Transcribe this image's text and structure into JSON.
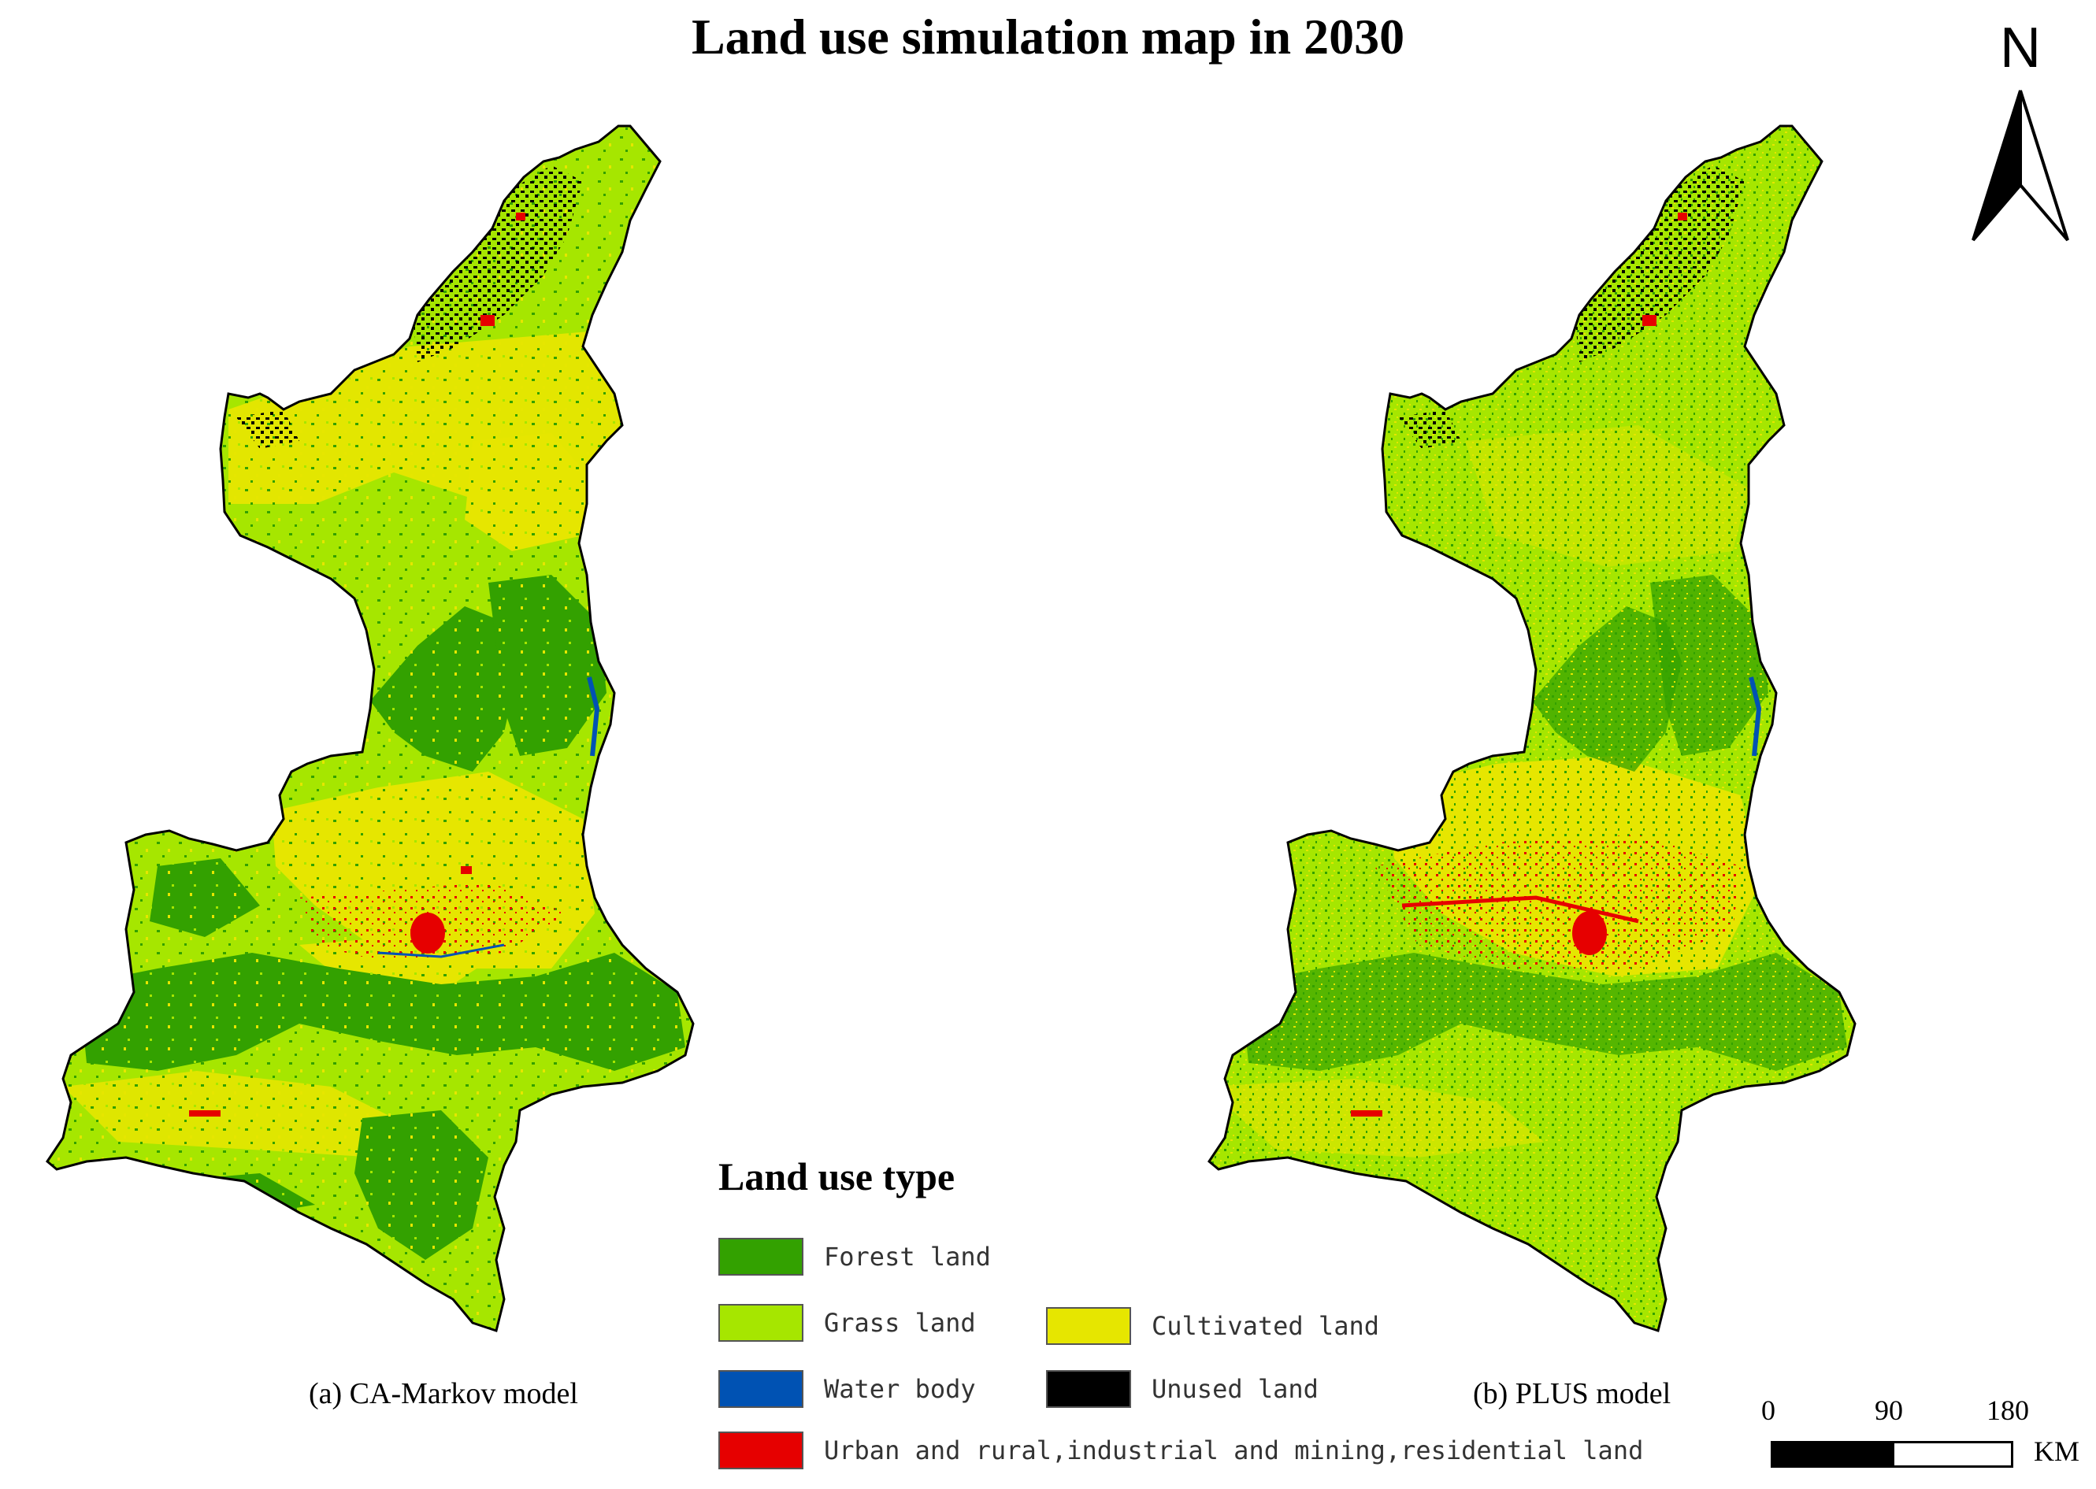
{
  "title": "Land use simulation map in 2030",
  "maps": [
    {
      "caption": "(a) CA-Markov model"
    },
    {
      "caption": "(b) PLUS model"
    }
  ],
  "legend": {
    "title": "Land use type",
    "items": [
      {
        "label": "Forest land",
        "color": "#33a100"
      },
      {
        "label": "Grass land",
        "color": "#a6e600"
      },
      {
        "label": "Cultivated land",
        "color": "#e6e600"
      },
      {
        "label": "Water body",
        "color": "#0052b3"
      },
      {
        "label": "Unused land",
        "color": "#000000"
      },
      {
        "label": "Urban and rural,industrial and mining,residential land",
        "color": "#e60000"
      }
    ]
  },
  "north_arrow": {
    "letter": "N"
  },
  "scale_bar": {
    "ticks": [
      "0",
      "90",
      "180"
    ],
    "unit": "KM"
  }
}
